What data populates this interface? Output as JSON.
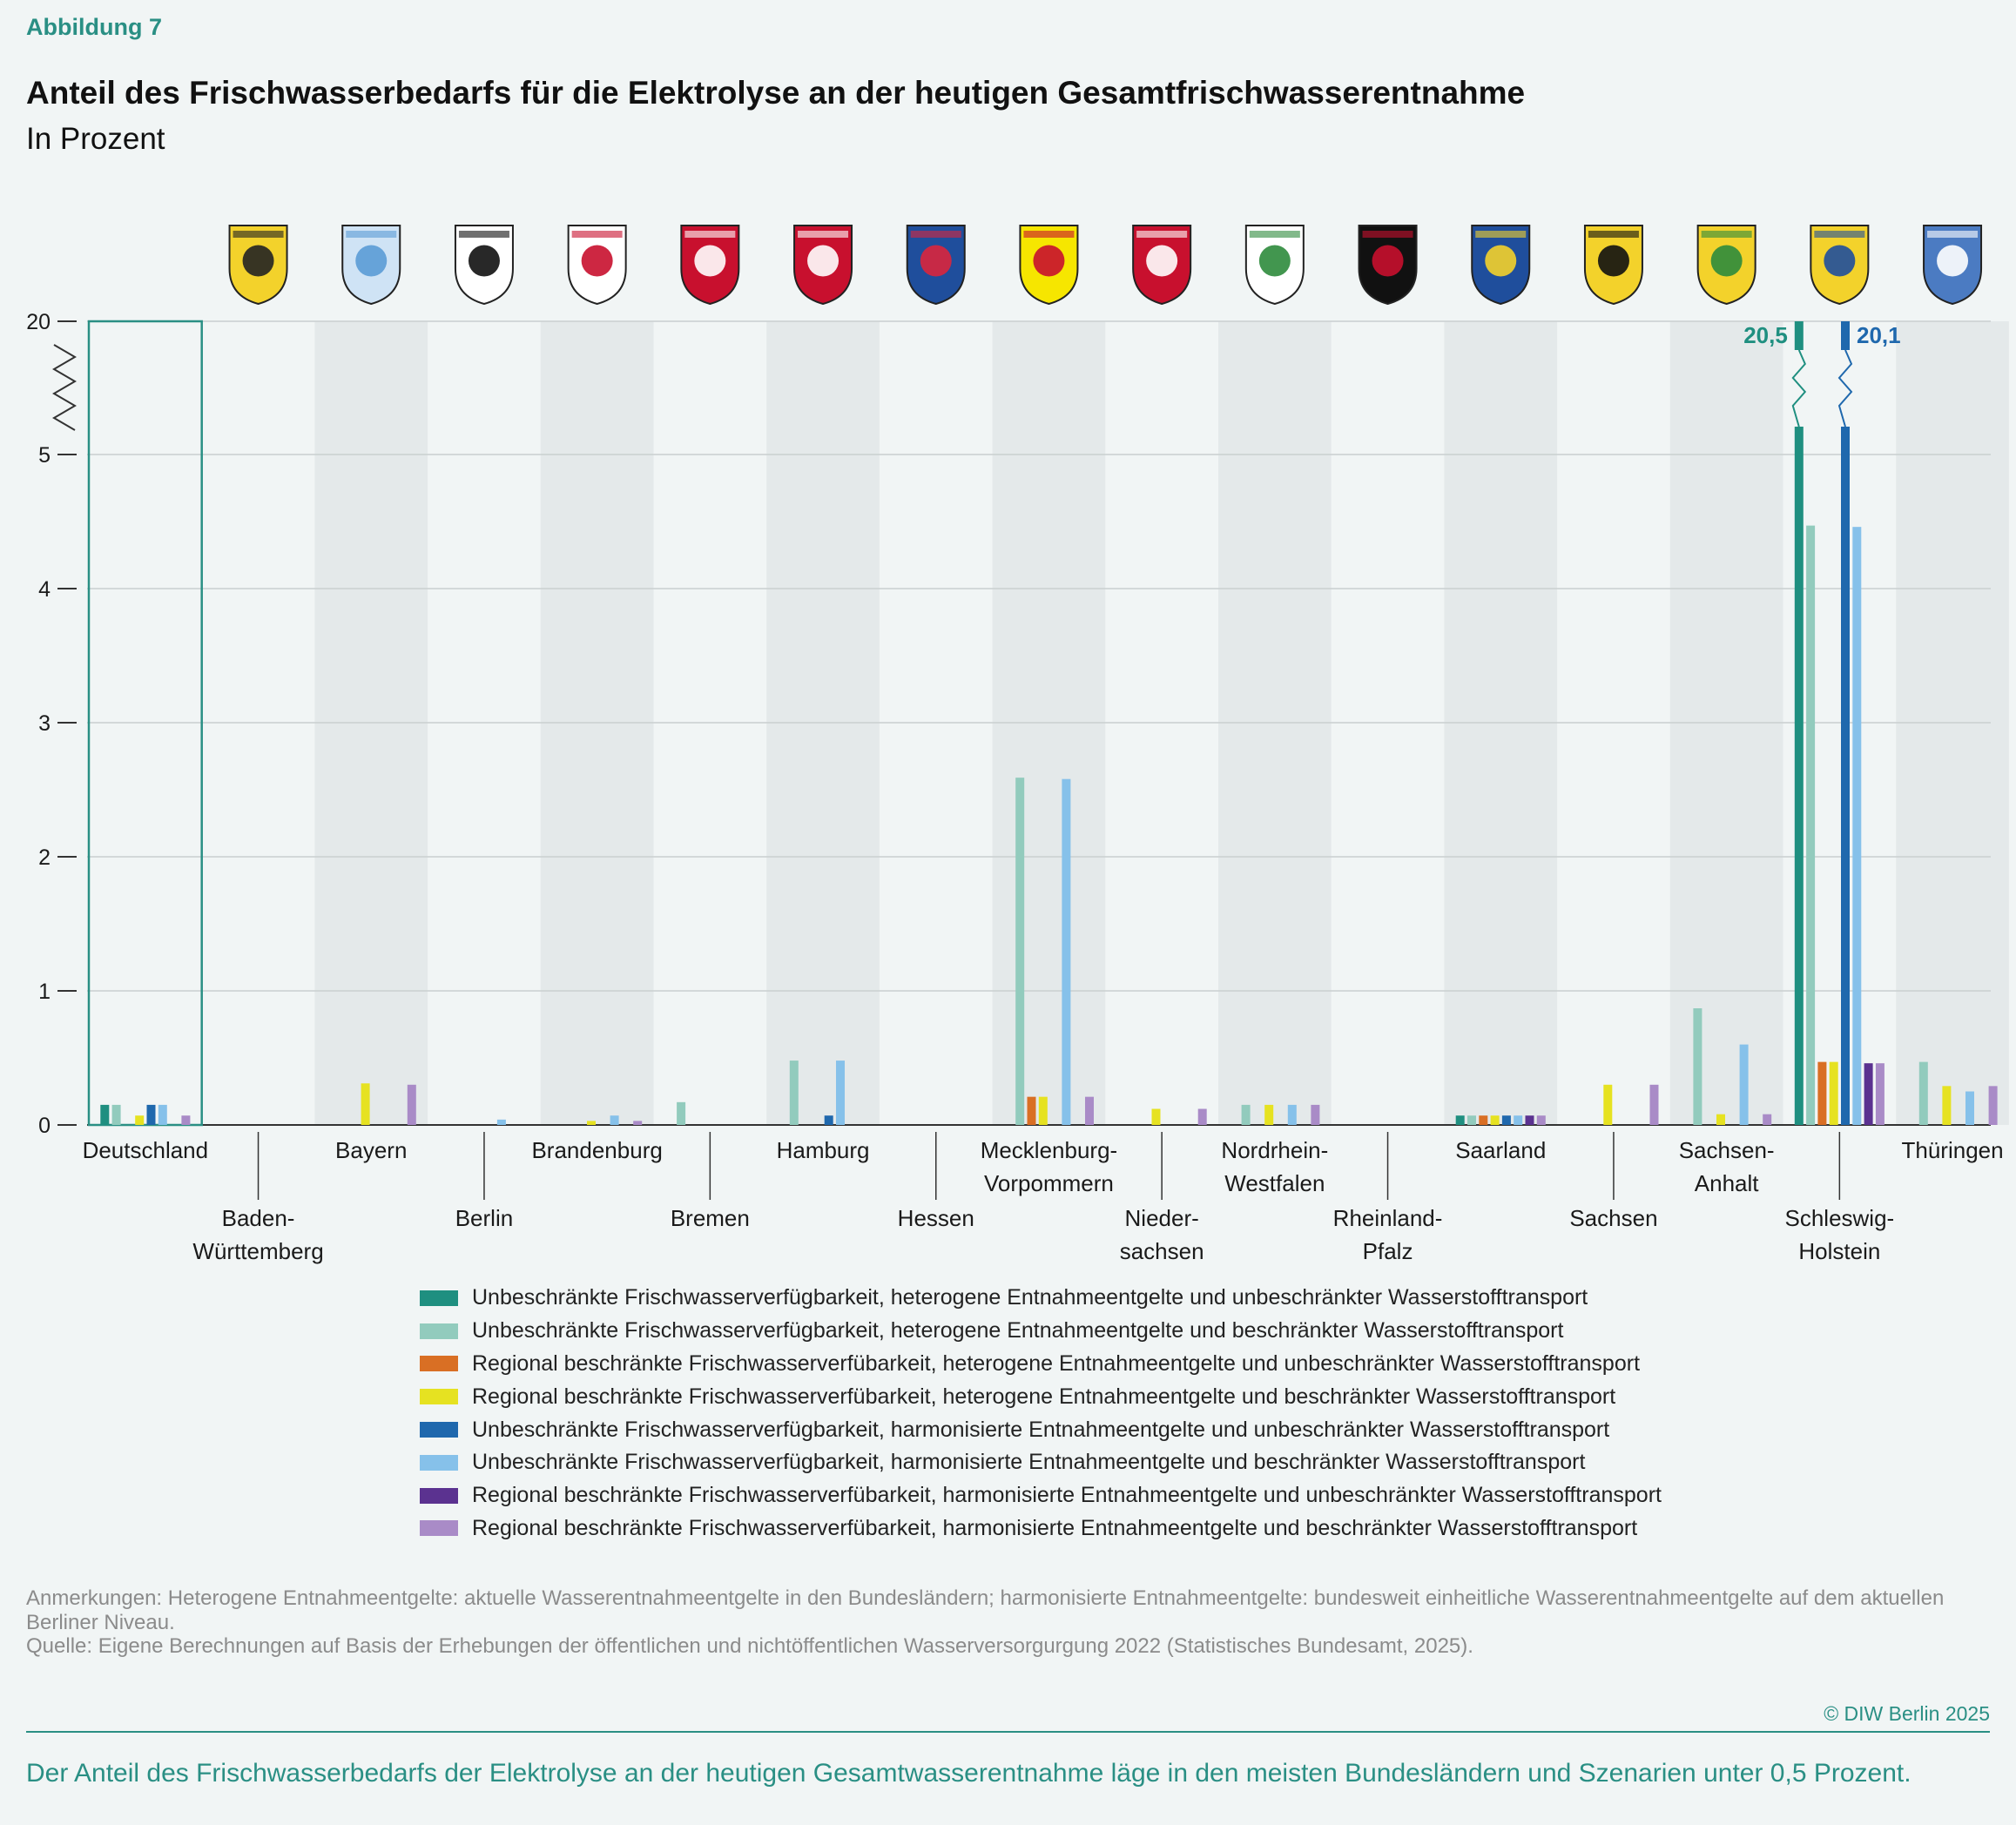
{
  "header": {
    "figure_label": "Abbildung 7",
    "title": "Anteil des Frischwasserbedarfs für die Elektrolyse an der heutigen Gesamtfrischwasserentnahme",
    "subtitle": "In Prozent"
  },
  "chart_data": {
    "type": "bar",
    "title": "Anteil des Frischwasserbedarfs für die Elektrolyse an der heutigen Gesamtfrischwasserentnahme",
    "ylabel": "In Prozent",
    "ylim": [
      0,
      20
    ],
    "y_axis_break": "between 5 and 20",
    "yticks": [
      "0",
      "1",
      "2",
      "3",
      "4",
      "5",
      "20"
    ],
    "grid": true,
    "legend_position": "bottom",
    "highlighted_category": "Deutschland",
    "categories": [
      {
        "label": "Deutschland",
        "coat_of_arms": "germany-none",
        "row": 1
      },
      {
        "label": "Baden-\nWürttemberg",
        "coat_of_arms": "baden-wuerttemberg-coat-of-arms-icon",
        "row": 2
      },
      {
        "label": "Bayern",
        "coat_of_arms": "bayern-coat-of-arms-icon",
        "row": 1
      },
      {
        "label": "Berlin",
        "coat_of_arms": "berlin-coat-of-arms-icon",
        "row": 2
      },
      {
        "label": "Brandenburg",
        "coat_of_arms": "brandenburg-coat-of-arms-icon",
        "row": 1
      },
      {
        "label": "Bremen",
        "coat_of_arms": "bremen-coat-of-arms-icon",
        "row": 2
      },
      {
        "label": "Hamburg",
        "coat_of_arms": "hamburg-coat-of-arms-icon",
        "row": 1
      },
      {
        "label": "Hessen",
        "coat_of_arms": "hessen-coat-of-arms-icon",
        "row": 2
      },
      {
        "label": "Mecklenburg-\nVorpommern",
        "coat_of_arms": "mecklenburg-vorpommern-coat-of-arms-icon",
        "row": 1
      },
      {
        "label": "Nieder-\nsachsen",
        "coat_of_arms": "niedersachsen-coat-of-arms-icon",
        "row": 2
      },
      {
        "label": "Nordrhein-\nWestfalen",
        "coat_of_arms": "nordrhein-westfalen-coat-of-arms-icon",
        "row": 1
      },
      {
        "label": "Rheinland-\nPfalz",
        "coat_of_arms": "rheinland-pfalz-coat-of-arms-icon",
        "row": 2
      },
      {
        "label": "Saarland",
        "coat_of_arms": "saarland-coat-of-arms-icon",
        "row": 1
      },
      {
        "label": "Sachsen",
        "coat_of_arms": "sachsen-coat-of-arms-icon",
        "row": 2
      },
      {
        "label": "Sachsen-\nAnhalt",
        "coat_of_arms": "sachsen-anhalt-coat-of-arms-icon",
        "row": 1
      },
      {
        "label": "Schleswig-\nHolstein",
        "coat_of_arms": "schleswig-holstein-coat-of-arms-icon",
        "row": 2
      },
      {
        "label": "Thüringen",
        "coat_of_arms": "thueringen-coat-of-arms-icon",
        "row": 1
      }
    ],
    "series": [
      {
        "name": "Unbeschränkte Frischwasserverfügbarkeit, heterogene Entnahmeentgelte und unbeschränkter Wasserstofftransport",
        "color": "#1f8f80",
        "values": [
          0.15,
          0,
          0,
          0,
          0,
          0,
          0,
          0,
          0,
          0,
          0,
          0,
          0.07,
          0,
          0,
          20.5,
          0
        ]
      },
      {
        "name": "Unbeschränkte Frischwasserverfügbarkeit, heterogene Entnahmeentgelte und beschränkter Wasserstofftransport",
        "color": "#92cbbd",
        "values": [
          0.15,
          0,
          0,
          0,
          0,
          0.17,
          0.48,
          0,
          2.59,
          0,
          0.15,
          0,
          0.07,
          0,
          0.87,
          4.47,
          0.47
        ]
      },
      {
        "name": "Regional beschränkte Frischwasserverfübarkeit, heterogene Entnahmeentgelte und unbeschränkter Wasserstofftransport",
        "color": "#d96f24",
        "values": [
          0,
          0,
          0,
          0,
          0,
          0,
          0,
          0,
          0.21,
          0,
          0,
          0,
          0.07,
          0,
          0,
          0.47,
          0
        ]
      },
      {
        "name": "Regional beschränkte Frischwasserverfübarkeit, heterogene Entnahmeentgelte und beschränkter Wasserstofftransport",
        "color": "#e6e221",
        "values": [
          0.07,
          0,
          0.31,
          0,
          0.03,
          0,
          0,
          0,
          0.21,
          0.12,
          0.15,
          0,
          0.07,
          0.3,
          0.08,
          0.47,
          0.29
        ]
      },
      {
        "name": "Unbeschränkte Frischwasserverfügbarkeit, harmonisierte Entnahmeentgelte und unbeschränkter Wasserstofftransport",
        "color": "#1f68ad",
        "values": [
          0.15,
          0,
          0,
          0,
          0,
          0,
          0.07,
          0,
          0,
          0,
          0,
          0,
          0.07,
          0,
          0,
          20.1,
          0
        ]
      },
      {
        "name": "Unbeschränkte Frischwasserverfügbarkeit, harmonisierte Entnahmeentgelte und beschränkter Wasserstofftransport",
        "color": "#86c1ea",
        "values": [
          0.15,
          0,
          0,
          0.04,
          0.07,
          0,
          0.48,
          0,
          2.58,
          0,
          0.15,
          0,
          0.07,
          0,
          0.6,
          4.46,
          0.25
        ]
      },
      {
        "name": "Regional beschränkte Frischwasserverfübarkeit, harmonisierte Entnahmeentgelte und unbeschränkter Wasserstofftransport",
        "color": "#5b3290",
        "values": [
          0,
          0,
          0,
          0,
          0,
          0,
          0,
          0,
          0,
          0,
          0,
          0,
          0.07,
          0,
          0,
          0.46,
          0
        ]
      },
      {
        "name": "Regional beschränkte Frischwasserverfübarkeit, harmonisierte Entnahmeentgelte und beschränkter Wasserstofftransport",
        "color": "#a98bc7",
        "values": [
          0.07,
          0,
          0.3,
          0,
          0.03,
          0,
          0,
          0,
          0.21,
          0.12,
          0.15,
          0,
          0.07,
          0.3,
          0.08,
          0.46,
          0.29
        ]
      }
    ],
    "annotations": [
      {
        "text": "20,5",
        "series_index": 0,
        "category": "Schleswig-\nHolstein",
        "color": "#1f8f80"
      },
      {
        "text": "20,1",
        "series_index": 4,
        "category": "Schleswig-\nHolstein",
        "color": "#1f68ad"
      }
    ]
  },
  "notes": {
    "anmerkungen": "Anmerkungen: Heterogene Entnahmeentgelte: aktuelle Wasserentnahmeentgelte in den Bundesländern; harmonisierte Entnahmeentgelte: bundesweit einheitliche Wasserentnahmeentgelte auf dem aktuellen Berliner Niveau.",
    "quelle": "Quelle: Eigene Berechnungen auf Basis der Erhebungen der öffentlichen und nichtöffentlichen Wasserversorgurgung 2022 (Statistisches Bundesamt, 2025)."
  },
  "footer": {
    "copyright": "© DIW Berlin 2025",
    "summary": "Der Anteil des Frischwasserbedarfs der Elektrolyse an der heutigen Gesamtwasserentnahme läge in den meisten Bundesländern und Szenarien unter 0,5 Prozent."
  }
}
